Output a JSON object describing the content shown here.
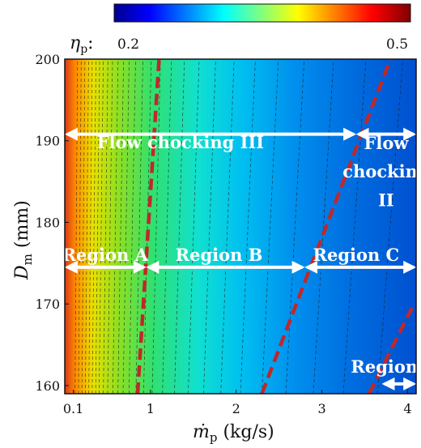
{
  "chart_data": {
    "type": "heatmap",
    "xlabel_symbol": "ṁ",
    "xlabel_sub": "p",
    "xlabel_unit": " (kg/s)",
    "ylabel_symbol": "D",
    "ylabel_sub": "m",
    "ylabel_unit": " (mm)",
    "xlim": [
      0,
      4.1
    ],
    "ylim": [
      159,
      200
    ],
    "x_ticks": [
      0.1,
      1,
      2,
      3,
      4
    ],
    "x_tick_labels": [
      "0.1",
      "1",
      "2",
      "3",
      "4"
    ],
    "y_ticks": [
      160,
      170,
      180,
      190,
      200
    ],
    "y_tick_labels": [
      "160",
      "170",
      "180",
      "190",
      "200"
    ],
    "colorbar": {
      "symbol": "η",
      "sub": "p",
      "suffix": ":",
      "min": 0.2,
      "max": 0.5,
      "min_label": "0.2",
      "max_label": "0.5",
      "colormap": "jet"
    },
    "boundaries": [
      {
        "name": "boundary-1",
        "points": [
          [
            0.85,
            159
          ],
          [
            1.1,
            200
          ]
        ],
        "color": "#c0282a"
      },
      {
        "name": "boundary-2",
        "points": [
          [
            2.3,
            159
          ],
          [
            3.8,
            200
          ]
        ],
        "color": "#c0282a"
      },
      {
        "name": "boundary-3",
        "points": [
          [
            3.55,
            159
          ],
          [
            4.05,
            169.5
          ]
        ],
        "color": "#c0282a"
      }
    ],
    "arrows": [
      {
        "name": "flow-chocking-iii-arrow",
        "x": [
          0.0,
          3.4
        ],
        "y": 190.8
      },
      {
        "name": "flow-chocking-ii-arrow",
        "x": [
          3.4,
          4.1
        ],
        "y": 190.8
      },
      {
        "name": "region-a-arrow",
        "x": [
          0.0,
          0.95
        ],
        "y": 174.5
      },
      {
        "name": "region-b-arrow",
        "x": [
          0.95,
          2.8
        ],
        "y": 174.5
      },
      {
        "name": "region-c-arrow",
        "x": [
          2.8,
          4.1
        ],
        "y": 174.5
      },
      {
        "name": "region-d-arrow",
        "x": [
          3.7,
          4.1
        ],
        "y": 160.2
      }
    ],
    "annotations": [
      {
        "name": "flow-chocking-iii-label",
        "text": "Flow chocking III",
        "x": 1.35,
        "y": 189.1
      },
      {
        "name": "flow-chocking-ii-label-1",
        "text": "Flow",
        "x": 3.75,
        "y": 189.0
      },
      {
        "name": "flow-chocking-ii-label-2",
        "text": "chocking",
        "x": 3.75,
        "y": 185.5
      },
      {
        "name": "flow-chocking-ii-label-3",
        "text": "II",
        "x": 3.75,
        "y": 182.0
      },
      {
        "name": "region-a-label",
        "text": "Region A",
        "x": 0.47,
        "y": 175.3
      },
      {
        "name": "region-b-label",
        "text": "Region B",
        "x": 1.8,
        "y": 175.3
      },
      {
        "name": "region-c-label",
        "text": "Region C",
        "x": 3.4,
        "y": 175.3
      },
      {
        "name": "region-d-label",
        "text": "Region D",
        "x": 3.85,
        "y": 161.6
      }
    ],
    "grid": false,
    "contour_lines": "dashed"
  }
}
